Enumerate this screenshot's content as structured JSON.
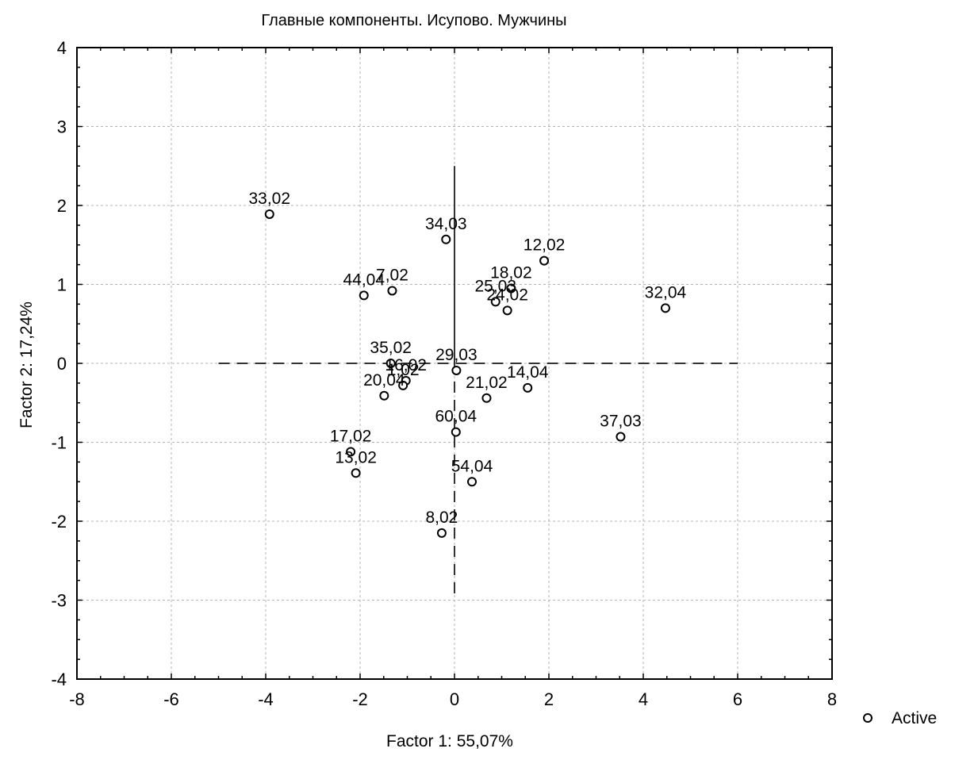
{
  "chart_data": {
    "type": "scatter",
    "title": "Главные компоненты. Исупово. Мужчины",
    "xlabel": "Factor 1: 55,07%",
    "ylabel": "Factor 2: 17,24%",
    "xlim": [
      -8,
      8
    ],
    "ylim": [
      -4,
      4
    ],
    "xticks": [
      -8,
      -6,
      -4,
      -2,
      0,
      2,
      4,
      6,
      8
    ],
    "yticks": [
      -4,
      -3,
      -2,
      -1,
      0,
      1,
      2,
      3,
      4
    ],
    "xtick_labels": [
      "-8",
      "-6",
      "-4",
      "-2",
      "0",
      "2",
      "4",
      "6",
      "8"
    ],
    "ytick_labels": [
      "-4",
      "-3",
      "-2",
      "-1",
      "0",
      "1",
      "2",
      "3",
      "4"
    ],
    "grid": true,
    "legend_position": "right",
    "series": [
      {
        "name": "Active",
        "marker": "open-circle",
        "color": "#000000",
        "points": [
          {
            "label": "33,02",
            "x": -3.92,
            "y": 1.89
          },
          {
            "label": "34,03",
            "x": -0.18,
            "y": 1.57
          },
          {
            "label": "12,02",
            "x": 1.9,
            "y": 1.3
          },
          {
            "label": "7,02",
            "x": -1.32,
            "y": 0.92
          },
          {
            "label": "44,04",
            "x": -1.92,
            "y": 0.86
          },
          {
            "label": "18,02",
            "x": 1.2,
            "y": 0.95
          },
          {
            "label": "25,03",
            "x": 0.87,
            "y": 0.78
          },
          {
            "label": "24,02",
            "x": 1.12,
            "y": 0.67
          },
          {
            "label": "32,04",
            "x": 4.47,
            "y": 0.7
          },
          {
            "label": "29,03",
            "x": 0.04,
            "y": -0.09
          },
          {
            "label": "35,02",
            "x": -1.35,
            "y": 0.0
          },
          {
            "label": "16,02",
            "x": -1.03,
            "y": -0.22
          },
          {
            "label": "1,02",
            "x": -1.09,
            "y": -0.28
          },
          {
            "label": "20,04",
            "x": -1.49,
            "y": -0.41
          },
          {
            "label": "21,02",
            "x": 0.68,
            "y": -0.44
          },
          {
            "label": "14,04",
            "x": 1.55,
            "y": -0.31
          },
          {
            "label": "60,04",
            "x": 0.03,
            "y": -0.87
          },
          {
            "label": "37,03",
            "x": 3.52,
            "y": -0.93
          },
          {
            "label": "17,02",
            "x": -2.2,
            "y": -1.12
          },
          {
            "label": "13,02",
            "x": -2.09,
            "y": -1.39
          },
          {
            "label": "54,04",
            "x": 0.37,
            "y": -1.5
          },
          {
            "label": "8,02",
            "x": -0.27,
            "y": -2.15
          }
        ]
      }
    ],
    "reference_lines": [
      {
        "style": "dashed",
        "from": [
          -5,
          0
        ],
        "to": [
          6,
          0
        ]
      },
      {
        "style": "solid",
        "from": [
          0,
          0
        ],
        "to": [
          0,
          2.5
        ]
      },
      {
        "style": "dashed",
        "from": [
          0,
          0
        ],
        "to": [
          0,
          -2.95
        ]
      }
    ]
  }
}
